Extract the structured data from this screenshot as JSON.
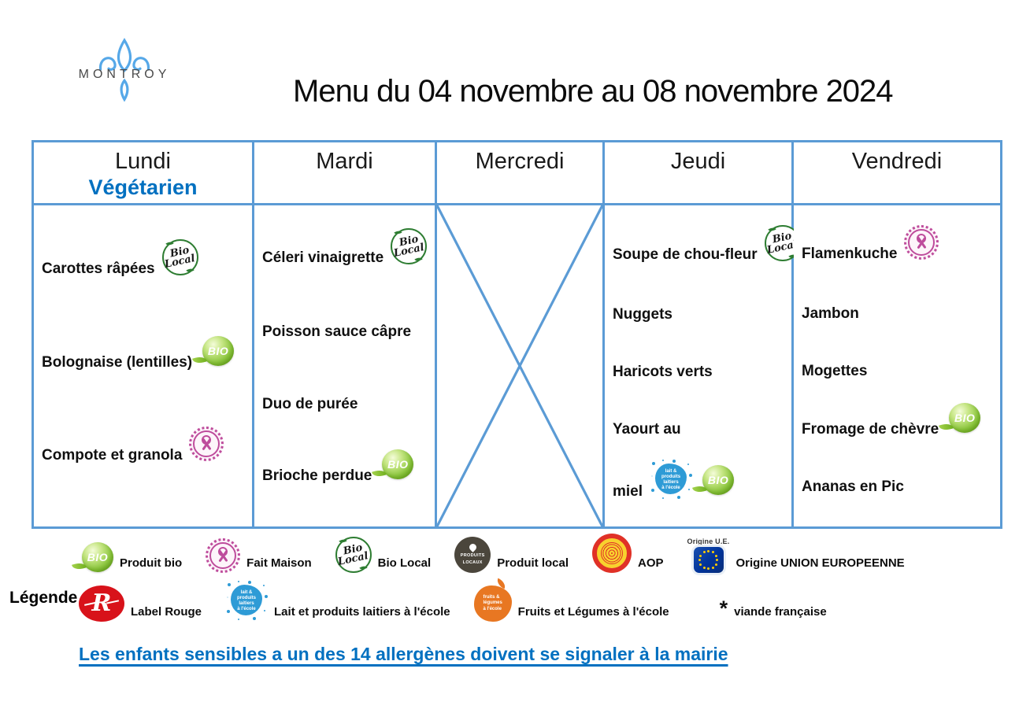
{
  "header": {
    "title": "Menu du 04 novembre au 08 novembre 2024"
  },
  "logo": {
    "name": "MONTROY"
  },
  "menu": {
    "days": [
      {
        "day": "Lundi",
        "subtitle": "Végétarien",
        "crossed": false,
        "items": [
          {
            "label": "Carottes râpées",
            "badges": [
              "bio-local"
            ]
          },
          {
            "label": "Bolognaise (lentilles)",
            "badges": [
              "bio"
            ]
          },
          {
            "label": "Compote et granola",
            "badges": [
              "fait-maison"
            ]
          }
        ]
      },
      {
        "day": "Mardi",
        "subtitle": "",
        "crossed": false,
        "items": [
          {
            "label": "Céleri vinaigrette",
            "badges": [
              "bio-local"
            ]
          },
          {
            "label": "Poisson sauce câpre",
            "badges": []
          },
          {
            "label": "Duo de purée",
            "badges": []
          },
          {
            "label": "Brioche perdue",
            "badges": [
              "bio"
            ]
          }
        ]
      },
      {
        "day": "Mercredi",
        "subtitle": "",
        "crossed": true,
        "items": []
      },
      {
        "day": "Jeudi",
        "subtitle": "",
        "crossed": false,
        "items": [
          {
            "label": "Soupe de chou-fleur",
            "badges": [
              "bio-local"
            ]
          },
          {
            "label": "Nuggets",
            "badges": []
          },
          {
            "label": "Haricots verts",
            "badges": []
          },
          {
            "label": "Yaourt au",
            "badges": []
          },
          {
            "label": "miel",
            "badges": [
              "lait-ecole",
              "bio"
            ]
          }
        ]
      },
      {
        "day": "Vendredi",
        "subtitle": "",
        "crossed": false,
        "items": [
          {
            "label": "Flamenkuche",
            "badges": [
              "fait-maison"
            ]
          },
          {
            "label": "Jambon",
            "badges": []
          },
          {
            "label": "Mogettes",
            "badges": []
          },
          {
            "label": "Fromage de chèvre",
            "badges": [
              "bio"
            ]
          },
          {
            "label": "Ananas en Pic",
            "badges": []
          }
        ]
      }
    ]
  },
  "legend": {
    "title": "Légende",
    "rows": [
      [
        {
          "icon": "bio",
          "label": "Produit bio"
        },
        {
          "icon": "fait-maison",
          "label": "Fait Maison"
        },
        {
          "icon": "bio-local",
          "label": "Bio Local"
        },
        {
          "icon": "produit-local",
          "label": "Produit local"
        },
        {
          "icon": "aop",
          "label": "AOP"
        },
        {
          "icon": "origine-ue",
          "label": "Origine UNION EUROPEENNE"
        }
      ],
      [
        {
          "icon": "label-rouge",
          "label": "Label Rouge"
        },
        {
          "icon": "lait-ecole",
          "label": "Lait et produits laitiers à l'école"
        },
        {
          "icon": "fruits-ecole",
          "label": "Fruits et Légumes à l'école"
        },
        {
          "icon": "asterisk",
          "label": "viande française"
        }
      ]
    ]
  },
  "icons": {
    "bio_text": "BIO",
    "bio_local_lines": [
      "Bio",
      "Local"
    ],
    "produit_local_lines": [
      "PRODUITS",
      "LOCAUX"
    ],
    "origine_ue_caption": "Origine U.E.",
    "label_rouge_letter": "R",
    "lait_lines": [
      "lait &",
      "produits",
      "laitiers",
      "à l'école"
    ],
    "fruits_lines": [
      "fruits &",
      "légumes",
      "à l'école"
    ],
    "asterisk_char": "*"
  },
  "footer": {
    "note": "Les enfants sensibles a un des 14 allergènes doivent se signaler à la mairie"
  },
  "colors": {
    "table_border_blue": "#5B9BD5",
    "accent_blue": "#0070C0",
    "bio_green": "#8CC63F",
    "bio_local_green": "#2E7D32",
    "fait_maison_pink": "#BE4C9C",
    "produit_local_brown": "#4B463C",
    "aop_red": "#E03127",
    "aop_yellow": "#F8D12E",
    "eu_blue": "#003399",
    "eu_star_yellow": "#FFCC00",
    "label_rouge_red": "#D8121A",
    "lait_blue": "#2E9BD6",
    "fruits_orange": "#E87722",
    "logo_blue": "#56A8E8"
  }
}
